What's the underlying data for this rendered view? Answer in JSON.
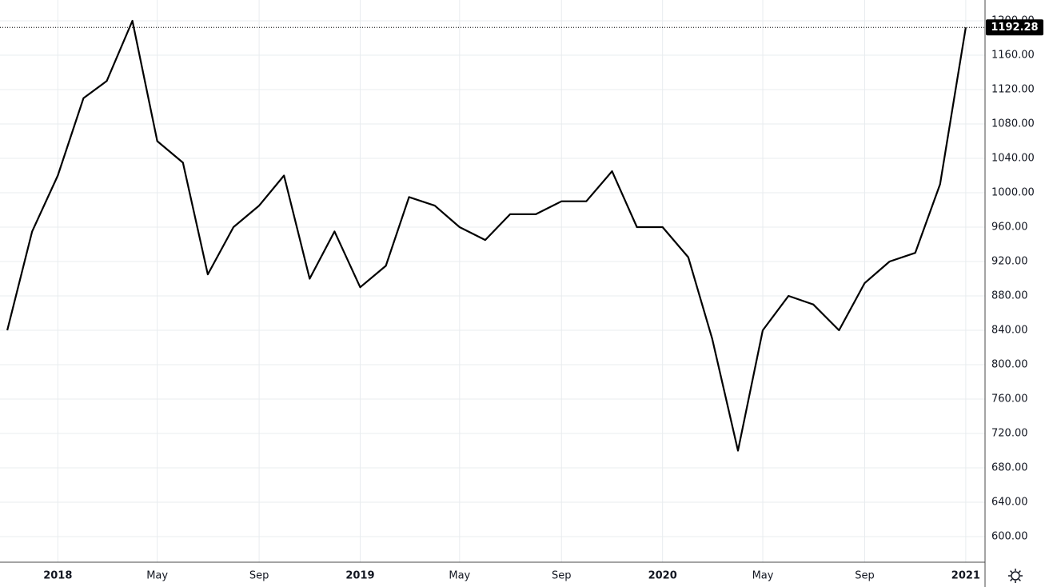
{
  "chart_data": {
    "type": "line",
    "x": [
      "2017-11",
      "2017-12",
      "2018-01",
      "2018-02",
      "2018-03",
      "2018-04",
      "2018-05",
      "2018-06",
      "2018-07",
      "2018-08",
      "2018-09",
      "2018-10",
      "2018-11",
      "2018-12",
      "2019-01",
      "2019-02",
      "2019-03",
      "2019-04",
      "2019-05",
      "2019-06",
      "2019-07",
      "2019-08",
      "2019-09",
      "2019-10",
      "2019-11",
      "2019-12",
      "2020-01",
      "2020-02",
      "2020-03",
      "2020-04",
      "2020-05",
      "2020-06",
      "2020-07",
      "2020-08",
      "2020-09",
      "2020-10",
      "2020-11",
      "2020-12",
      "2021-01"
    ],
    "series": [
      {
        "color": "#000000",
        "values": [
          840,
          955,
          1020,
          1110,
          1130,
          1200,
          1060,
          1035,
          905,
          960,
          985,
          1020,
          900,
          955,
          890,
          915,
          995,
          985,
          960,
          945,
          975,
          975,
          990,
          990,
          1025,
          960,
          960,
          925,
          830,
          700,
          840,
          880,
          870,
          840,
          895,
          920,
          930,
          1010,
          1192.28
        ]
      }
    ],
    "last_value_label": "1192.28",
    "xlim": [
      "2017-10",
      "2021-02"
    ],
    "xticks": [
      {
        "value": "2018-01",
        "label": "2018"
      },
      {
        "value": "2018-05",
        "label": "May"
      },
      {
        "value": "2018-09",
        "label": "Sep"
      },
      {
        "value": "2019-01",
        "label": "2019"
      },
      {
        "value": "2019-05",
        "label": "May"
      },
      {
        "value": "2019-09",
        "label": "Sep"
      },
      {
        "value": "2020-01",
        "label": "2020"
      },
      {
        "value": "2020-05",
        "label": "May"
      },
      {
        "value": "2020-09",
        "label": "Sep"
      },
      {
        "value": "2021-01",
        "label": "2021"
      }
    ],
    "ylim": [
      570.2,
      1224.2
    ],
    "yticks": [
      {
        "value": 600,
        "label": "600.00"
      },
      {
        "value": 640,
        "label": "640.00"
      },
      {
        "value": 680,
        "label": "680.00"
      },
      {
        "value": 720,
        "label": "720.00"
      },
      {
        "value": 760,
        "label": "760.00"
      },
      {
        "value": 800,
        "label": "800.00"
      },
      {
        "value": 840,
        "label": "840.00"
      },
      {
        "value": 880,
        "label": "880.00"
      },
      {
        "value": 920,
        "label": "920.00"
      },
      {
        "value": 960,
        "label": "960.00"
      },
      {
        "value": 1000,
        "label": "1000.00"
      },
      {
        "value": 1040,
        "label": "1040.00"
      },
      {
        "value": 1080,
        "label": "1080.00"
      },
      {
        "value": 1120,
        "label": "1120.00"
      },
      {
        "value": 1160,
        "label": "1160.00"
      },
      {
        "value": 1200,
        "label": "1200.00"
      }
    ],
    "grid": true
  }
}
